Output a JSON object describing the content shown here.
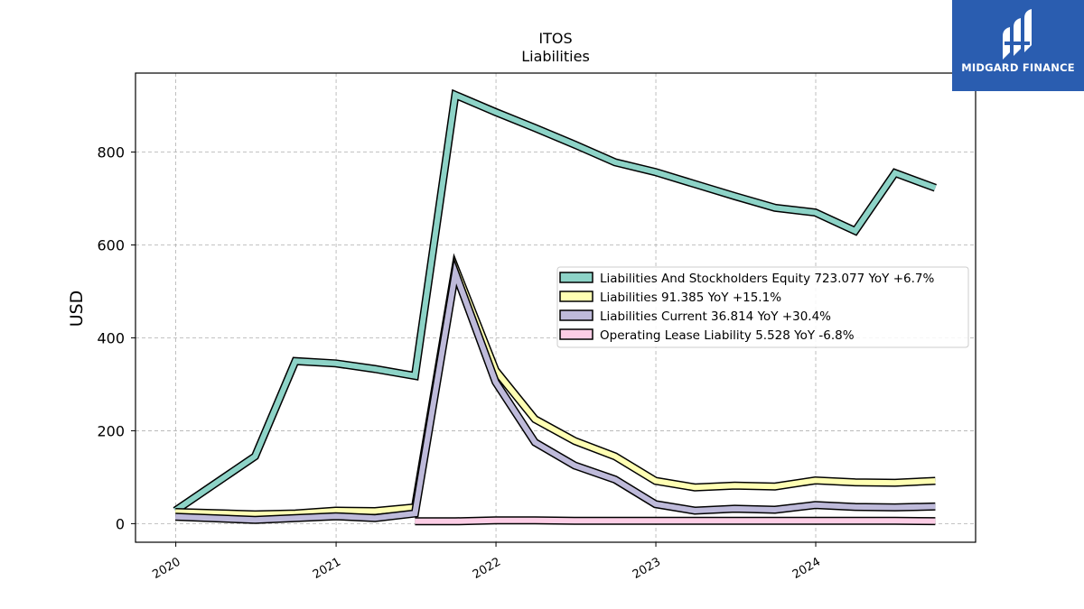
{
  "chart_data": {
    "type": "line",
    "title": "ITOS",
    "subtitle": "Liabilities",
    "ylabel": "USD",
    "xlabel": "",
    "ylim": [
      -40,
      970
    ],
    "yticks": [
      0,
      200,
      400,
      600,
      800
    ],
    "xlim": [
      "2019-10-01",
      "2024-12-31"
    ],
    "xticks": [
      "2020",
      "2021",
      "2022",
      "2023",
      "2024"
    ],
    "grid": true,
    "legend_position": "center-right",
    "series": [
      {
        "name": "Liabilities And Stockholders Equity  723.077 YoY +6.7%",
        "color": "#8dd3c7",
        "x": [
          "2019-12-31",
          "2020-06-30",
          "2020-09-30",
          "2020-12-31",
          "2021-03-31",
          "2021-06-30",
          "2021-09-30",
          "2021-12-31",
          "2022-03-31",
          "2022-06-30",
          "2022-09-30",
          "2022-12-31",
          "2023-03-31",
          "2023-06-30",
          "2023-09-30",
          "2023-12-31",
          "2024-03-31",
          "2024-06-30",
          "2024-09-30"
        ],
        "values": [
          28,
          145,
          350,
          345,
          333,
          318,
          923,
          886,
          852,
          816,
          778,
          757,
          731,
          705,
          680,
          670,
          630,
          755,
          723
        ]
      },
      {
        "name": "Liabilities  91.385 YoY +15.1%",
        "color": "#ffffb3",
        "x": [
          "2019-12-31",
          "2020-06-30",
          "2020-09-30",
          "2020-12-31",
          "2021-03-31",
          "2021-06-30",
          "2021-09-30",
          "2021-12-31",
          "2022-03-31",
          "2022-06-30",
          "2022-09-30",
          "2022-12-31",
          "2023-03-31",
          "2023-06-30",
          "2023-09-30",
          "2023-12-31",
          "2024-03-31",
          "2024-06-30",
          "2024-09-30"
        ],
        "values": [
          25,
          20,
          22,
          28,
          27,
          35,
          550,
          330,
          225,
          178,
          145,
          92,
          78,
          82,
          80,
          93,
          89,
          88,
          92
        ]
      },
      {
        "name": "Liabilities Current  36.814 YoY +30.4%",
        "color": "#bebada",
        "x": [
          "2019-12-31",
          "2020-06-30",
          "2020-09-30",
          "2020-12-31",
          "2021-03-31",
          "2021-06-30",
          "2021-09-30",
          "2021-12-31",
          "2022-03-31",
          "2022-06-30",
          "2022-09-30",
          "2022-12-31",
          "2023-03-31",
          "2023-06-30",
          "2023-09-30",
          "2023-12-31",
          "2024-03-31",
          "2024-06-30",
          "2024-09-30"
        ],
        "values": [
          15,
          8,
          12,
          16,
          12,
          22,
          540,
          305,
          175,
          125,
          95,
          42,
          28,
          32,
          30,
          40,
          36,
          35,
          37
        ]
      },
      {
        "name": "Operating Lease Liability  5.528 YoY -6.8%",
        "color": "#fccde5",
        "x": [
          "2021-06-30",
          "2021-09-30",
          "2021-12-31",
          "2022-03-31",
          "2022-06-30",
          "2022-09-30",
          "2022-12-31",
          "2023-03-31",
          "2023-06-30",
          "2023-09-30",
          "2023-12-31",
          "2024-03-31",
          "2024-06-30",
          "2024-09-30"
        ],
        "values": [
          5,
          5,
          7,
          7,
          6,
          6,
          6,
          6,
          6,
          6,
          6,
          6,
          6,
          5.5
        ]
      }
    ]
  },
  "logo": {
    "text": "MIDGARD FINANCE",
    "background": "#2a5db0",
    "icon": "midgard-logo-icon"
  }
}
